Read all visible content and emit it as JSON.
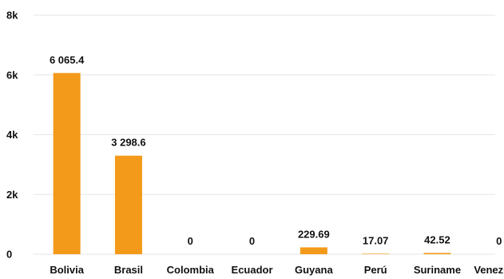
{
  "chart_data": {
    "type": "bar",
    "title": "",
    "xlabel": "",
    "ylabel": "",
    "categories": [
      "Bolivia",
      "Brasil",
      "Colombia",
      "Ecuador",
      "Guyana",
      "Perú",
      "Suriname",
      "Venezuela"
    ],
    "values": [
      6065.4,
      3298.6,
      0,
      0,
      229.69,
      17.07,
      42.52,
      0
    ],
    "value_labels": [
      "6 065.4",
      "3 298.6",
      "0",
      "0",
      "229.69",
      "17.07",
      "42.52",
      "0"
    ],
    "yticks": [
      0,
      2000,
      4000,
      6000,
      8000
    ],
    "ytick_labels": [
      "0",
      "2k",
      "4k",
      "6k",
      "8k"
    ],
    "ylim": [
      0,
      8000
    ],
    "grid": true,
    "legend": "none",
    "bar_color": "#F39A1B"
  }
}
